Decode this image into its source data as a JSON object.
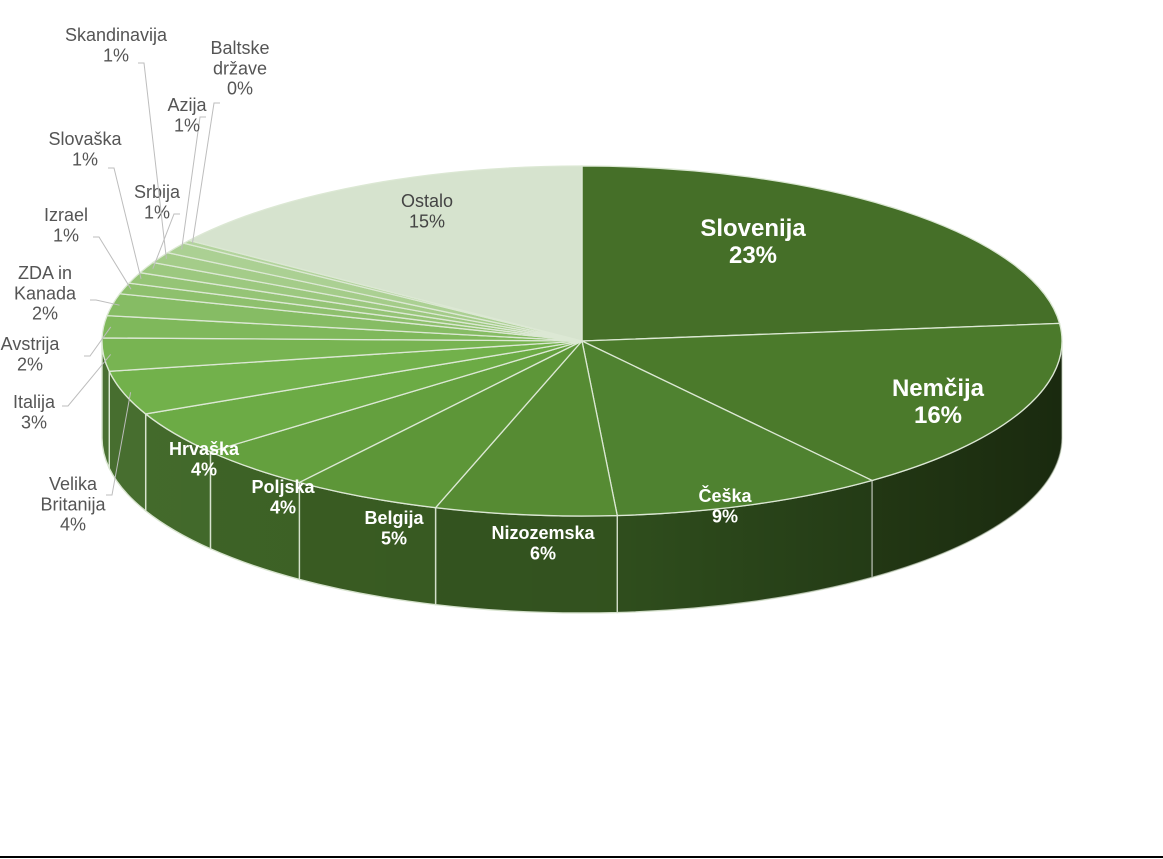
{
  "chart_data": {
    "type": "pie",
    "title": "",
    "slices": [
      {
        "label": "Slovenija",
        "percent_label": "23%",
        "value": 23,
        "label_lines": [
          "Slovenija",
          "23%"
        ],
        "label_style": "inside-large"
      },
      {
        "label": "Nemčija",
        "percent_label": "16%",
        "value": 16,
        "label_lines": [
          "Nemčija",
          "16%"
        ],
        "label_style": "inside-large"
      },
      {
        "label": "Češka",
        "percent_label": "9%",
        "value": 9,
        "label_lines": [
          "Češka",
          "9%"
        ],
        "label_style": "inside"
      },
      {
        "label": "Nizozemska",
        "percent_label": "6%",
        "value": 6,
        "label_lines": [
          "Nizozemska",
          "6%"
        ],
        "label_style": "inside"
      },
      {
        "label": "Belgija",
        "percent_label": "5%",
        "value": 5,
        "label_lines": [
          "Belgija",
          "5%"
        ],
        "label_style": "inside"
      },
      {
        "label": "Poljska",
        "percent_label": "4%",
        "value": 4,
        "label_lines": [
          "Poljska",
          "4%"
        ],
        "label_style": "inside"
      },
      {
        "label": "Hrvaška",
        "percent_label": "4%",
        "value": 4,
        "label_lines": [
          "Hrvaška",
          "4%"
        ],
        "label_style": "inside"
      },
      {
        "label": "Velika Britanija",
        "percent_label": "4%",
        "value": 4,
        "label_lines": [
          "Velika",
          "Britanija",
          "4%"
        ],
        "label_style": "outside"
      },
      {
        "label": "Italija",
        "percent_label": "3%",
        "value": 3,
        "label_lines": [
          "Italija",
          "3%"
        ],
        "label_style": "outside"
      },
      {
        "label": "Avstrija",
        "percent_label": "2%",
        "value": 2,
        "label_lines": [
          "Avstrija",
          "2%"
        ],
        "label_style": "outside"
      },
      {
        "label": "ZDA in Kanada",
        "percent_label": "2%",
        "value": 2,
        "label_lines": [
          "ZDA in",
          "Kanada",
          "2%"
        ],
        "label_style": "outside"
      },
      {
        "label": "Izrael",
        "percent_label": "1%",
        "value": 1,
        "label_lines": [
          "Izrael",
          "1%"
        ],
        "label_style": "outside"
      },
      {
        "label": "Slovaška",
        "percent_label": "1%",
        "value": 1,
        "label_lines": [
          "Slovaška",
          "1%"
        ],
        "label_style": "outside"
      },
      {
        "label": "Srbija",
        "percent_label": "1%",
        "value": 1,
        "label_lines": [
          "Srbija",
          "1%"
        ],
        "label_style": "outside"
      },
      {
        "label": "Skandinavija",
        "percent_label": "1%",
        "value": 1,
        "label_lines": [
          "Skandinavija",
          "1%"
        ],
        "label_style": "outside"
      },
      {
        "label": "Azija",
        "percent_label": "1%",
        "value": 1,
        "label_lines": [
          "Azija",
          "1%"
        ],
        "label_style": "outside"
      },
      {
        "label": "Baltske države",
        "percent_label": "0%",
        "value": 0.3,
        "label_lines": [
          "Baltske",
          "države",
          "0%"
        ],
        "label_style": "outside"
      },
      {
        "label": "Ostalo",
        "percent_label": "15%",
        "value": 15,
        "label_lines": [
          "Ostalo",
          "15%"
        ],
        "label_style": "inside"
      }
    ],
    "colors": [
      "#456f28",
      "#4b7a2b",
      "#4f8230",
      "#568b33",
      "#5d9638",
      "#64a03e",
      "#6cab45",
      "#72b14b",
      "#78b452",
      "#7fb85b",
      "#86bc64",
      "#8ec06d",
      "#95c476",
      "#9cc87f",
      "#a4cc89",
      "#abd093",
      "#b3d49d",
      "#d6e3ce"
    ],
    "legend": "none",
    "perspective": "3d-tilted"
  }
}
